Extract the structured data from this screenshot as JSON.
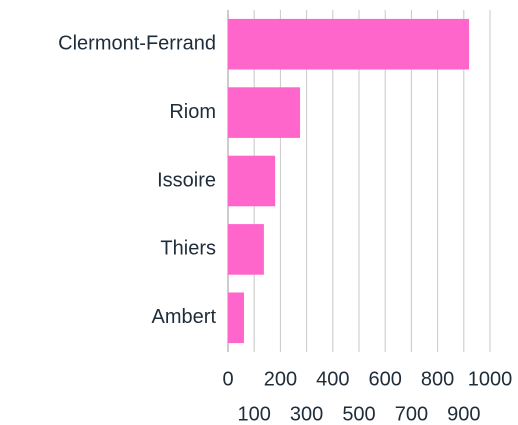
{
  "chart_data": {
    "type": "bar",
    "orientation": "horizontal",
    "categories": [
      "Clermont-Ferrand",
      "Riom",
      "Issoire",
      "Thiers",
      "Ambert"
    ],
    "values": [
      920,
      275,
      180,
      137,
      61
    ],
    "color": "#ff66cc",
    "xlim": [
      0,
      1000
    ],
    "xticks": [
      0,
      100,
      200,
      300,
      400,
      500,
      600,
      700,
      800,
      900,
      1000
    ],
    "grid": true
  }
}
